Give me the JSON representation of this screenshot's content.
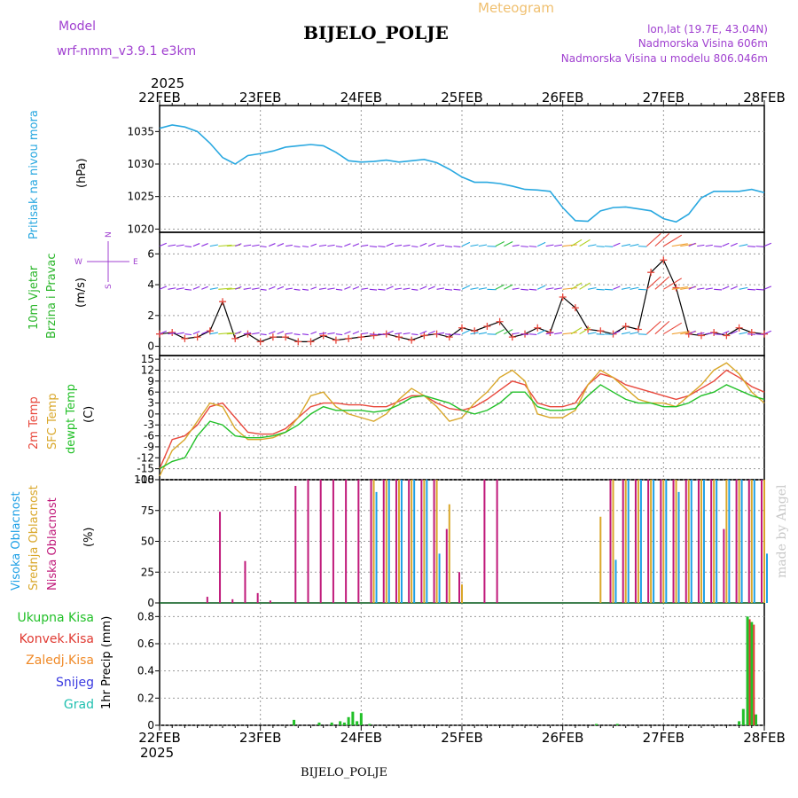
{
  "header": {
    "meteogram_title": "Meteogram",
    "model_label": "Model",
    "model_name": "wrf-nmm_v3.9.1 e3km",
    "station": "BIJELO_POLJE",
    "lonlat": "lon,lat (19.7E, 43.04N)",
    "altitude": "Nadmorska Visina 606m",
    "model_altitude": "Nadmorska Visina u modelu 806.046m",
    "year": "2025",
    "footer_station": "BIJELO_POLJE",
    "credit": "made by Angel"
  },
  "colors": {
    "pressure": "#29a8e0",
    "temp2m": "#e8483c",
    "sfc": "#d9a72a",
    "dew": "#22c028",
    "high_cloud": "#1ea0e6",
    "mid_cloud": "#d9a72a",
    "low_cloud": "#c0197a",
    "total_rain": "#22c028",
    "conv_rain": "#e03a32",
    "freezing": "#f08a28",
    "snow": "#3a3ae0",
    "hail": "#20c0b0",
    "wind_label": "#2ab62a",
    "axis_purple": "#a040d0"
  },
  "chart_data": [
    {
      "type": "line",
      "id": "pressure",
      "ylabel": "Pritisak na nivou mora",
      "unit": "(hPa)",
      "ylim": [
        1019.5,
        1039
      ],
      "yticks": [
        "1020",
        "1025",
        "1030",
        "1035"
      ],
      "x_hours": [
        0,
        3,
        6,
        9,
        12,
        15,
        18,
        21,
        24,
        27,
        30,
        33,
        36,
        39,
        42,
        45,
        48,
        51,
        54,
        57,
        60,
        63,
        66,
        69,
        72,
        75,
        78,
        81,
        84,
        87,
        90,
        93,
        96,
        99,
        102,
        105,
        108,
        111,
        114,
        117,
        120,
        123,
        126,
        129,
        132,
        135,
        138,
        141,
        144
      ],
      "values": [
        1035.5,
        1036,
        1035.7,
        1035,
        1033.2,
        1031,
        1030,
        1031.3,
        1031.6,
        1032,
        1032.6,
        1032.8,
        1033,
        1032.8,
        1031.8,
        1030.5,
        1030.3,
        1030.4,
        1030.6,
        1030.3,
        1030.5,
        1030.7,
        1030.2,
        1029.2,
        1028,
        1027.2,
        1027.2,
        1027,
        1026.6,
        1026.1,
        1026,
        1025.8,
        1023.3,
        1021.3,
        1021.2,
        1022.8,
        1023.3,
        1023.4,
        1023.1,
        1022.8,
        1021.6,
        1021.1,
        1022.3,
        1024.8,
        1025.8,
        1025.8,
        1025.8,
        1026.1,
        1025.6
      ]
    },
    {
      "type": "line",
      "id": "wind",
      "ylabel": [
        "10m Vjetar",
        "Brzina i Pravac"
      ],
      "unit": "(m/s)",
      "ylim": [
        -0.6,
        7.4
      ],
      "yticks": [
        "0",
        "2",
        "4",
        "6"
      ],
      "compass": [
        "W",
        "E",
        "N",
        "S"
      ],
      "x_hours": [
        0,
        3,
        6,
        9,
        12,
        15,
        18,
        21,
        24,
        27,
        30,
        33,
        36,
        39,
        42,
        45,
        48,
        51,
        54,
        57,
        60,
        63,
        66,
        69,
        72,
        75,
        78,
        81,
        84,
        87,
        90,
        93,
        96,
        99,
        102,
        105,
        108,
        111,
        114,
        117,
        120,
        123,
        126,
        129,
        132,
        135,
        138,
        141,
        144
      ],
      "values": [
        0.8,
        0.9,
        0.5,
        0.6,
        1.0,
        2.9,
        0.5,
        0.8,
        0.3,
        0.6,
        0.6,
        0.3,
        0.3,
        0.7,
        0.4,
        0.5,
        0.6,
        0.7,
        0.8,
        0.6,
        0.4,
        0.7,
        0.8,
        0.6,
        1.2,
        1.0,
        1.3,
        1.6,
        0.6,
        0.8,
        1.2,
        0.9,
        3.2,
        2.5,
        1.1,
        1.0,
        0.8,
        1.3,
        1.1,
        4.8,
        5.6,
        3.8,
        0.8,
        0.7,
        0.9,
        0.7,
        1.2,
        0.9,
        0.8
      ]
    },
    {
      "type": "line",
      "id": "temperature",
      "ylabel": [
        "2m Temp",
        "SFC Temp",
        "dewpt Temp"
      ],
      "unit": "(C)",
      "ylim": [
        -18,
        16
      ],
      "yticks": [
        "-18",
        "-15",
        "-12",
        "-9",
        "-6",
        "-3",
        "0",
        "3",
        "6",
        "9",
        "12",
        "15"
      ],
      "x_hours": [
        0,
        3,
        6,
        9,
        12,
        15,
        18,
        21,
        24,
        27,
        30,
        33,
        36,
        39,
        42,
        45,
        48,
        51,
        54,
        57,
        60,
        63,
        66,
        69,
        72,
        75,
        78,
        81,
        84,
        87,
        90,
        93,
        96,
        99,
        102,
        105,
        108,
        111,
        114,
        117,
        120,
        123,
        126,
        129,
        132,
        135,
        138,
        141,
        144
      ],
      "series": [
        {
          "name": "2m Temp",
          "values": [
            -15,
            -7,
            -6,
            -3,
            2,
            3,
            -1,
            -5,
            -5.5,
            -5.5,
            -4,
            -1,
            2,
            3,
            3,
            2.5,
            2.5,
            2,
            2,
            3.5,
            5,
            5,
            3,
            1.5,
            1,
            2,
            4,
            6.5,
            9,
            8,
            3,
            2,
            2,
            3,
            8,
            11,
            10,
            8,
            7,
            6,
            5,
            4,
            5,
            7,
            9,
            12,
            10,
            7.5,
            6
          ]
        },
        {
          "name": "SFC Temp",
          "values": [
            -17,
            -10,
            -7,
            -2,
            3,
            2,
            -4,
            -7,
            -7,
            -6.5,
            -5,
            -1,
            5,
            6,
            2,
            0,
            -1,
            -2,
            0,
            4,
            7,
            5,
            2,
            -2,
            -1,
            3,
            6,
            10,
            12,
            9,
            0,
            -1,
            -1,
            1,
            8,
            12,
            10,
            7,
            4,
            3,
            3,
            2,
            5,
            8,
            12,
            14,
            11,
            6,
            3
          ]
        },
        {
          "name": "dewpt Temp",
          "values": [
            -15,
            -13,
            -12,
            -6,
            -2,
            -3,
            -6,
            -6.5,
            -6.5,
            -6,
            -5,
            -3,
            0,
            2,
            1,
            1,
            1,
            0.5,
            1,
            2.5,
            4.5,
            5,
            4,
            3,
            1,
            0,
            1,
            3,
            6,
            6,
            2,
            1,
            1,
            1.5,
            5,
            8,
            6,
            4,
            3,
            3,
            2,
            2,
            3,
            5,
            6,
            8,
            6.5,
            5,
            4
          ]
        }
      ]
    },
    {
      "type": "bar",
      "id": "clouds",
      "ylabel": [
        "Visoka Oblacnost",
        "Srednja Oblacnost",
        "Niska Oblacnost"
      ],
      "unit": "(%)",
      "ylim": [
        0,
        100
      ],
      "yticks": [
        "0",
        "25",
        "50",
        "75",
        "100"
      ],
      "x_hours": [
        0,
        3,
        6,
        9,
        12,
        15,
        18,
        21,
        24,
        27,
        30,
        33,
        36,
        39,
        42,
        45,
        48,
        51,
        54,
        57,
        60,
        63,
        66,
        69,
        72,
        75,
        78,
        81,
        84,
        87,
        90,
        93,
        96,
        99,
        102,
        105,
        108,
        111,
        114,
        117,
        120,
        123,
        126,
        129,
        132,
        135,
        138,
        141,
        144
      ],
      "series": [
        {
          "name": "Niska Oblacnost",
          "values": [
            0,
            0,
            0,
            0,
            5,
            74,
            3,
            34,
            8,
            2,
            0,
            95,
            100,
            100,
            100,
            100,
            100,
            100,
            100,
            100,
            100,
            100,
            100,
            60,
            25,
            0,
            100,
            100,
            0,
            0,
            0,
            0,
            0,
            0,
            0,
            0,
            100,
            100,
            100,
            100,
            100,
            100,
            100,
            100,
            100,
            60,
            100,
            100,
            100
          ]
        },
        {
          "name": "Srednja Oblacnost",
          "values": [
            0,
            0,
            0,
            0,
            0,
            0,
            0,
            0,
            0,
            0,
            0,
            0,
            0,
            0,
            0,
            0,
            0,
            100,
            100,
            100,
            100,
            100,
            100,
            80,
            15,
            0,
            0,
            0,
            0,
            0,
            0,
            0,
            0,
            0,
            0,
            70,
            100,
            100,
            100,
            100,
            100,
            100,
            100,
            100,
            100,
            100,
            100,
            100,
            100
          ]
        },
        {
          "name": "Visoka Oblacnost",
          "values": [
            0,
            0,
            0,
            0,
            0,
            0,
            0,
            0,
            0,
            0,
            0,
            0,
            0,
            0,
            0,
            0,
            0,
            90,
            100,
            100,
            100,
            100,
            40,
            0,
            0,
            0,
            0,
            0,
            0,
            0,
            0,
            0,
            0,
            0,
            0,
            0,
            35,
            100,
            100,
            100,
            100,
            90,
            100,
            100,
            100,
            100,
            100,
            100,
            40
          ]
        }
      ]
    },
    {
      "type": "bar",
      "id": "precip",
      "ylabel": "1hr Precip (mm)",
      "ylim": [
        0,
        0.9
      ],
      "yticks": [
        "0",
        "0.2",
        "0.4",
        "0.6",
        "0.8"
      ],
      "legend": [
        "Ukupna Kisa",
        "Konvek.Kisa",
        "Zaledj.Kisa",
        "Snijeg",
        "Grad"
      ],
      "total_rain": {
        "x_hours": [
          32,
          38,
          41,
          43,
          44,
          45,
          46,
          47,
          48,
          50,
          104,
          109,
          138,
          139,
          140,
          141,
          142
        ],
        "values": [
          0.04,
          0.02,
          0.02,
          0.03,
          0.02,
          0.06,
          0.1,
          0.03,
          0.09,
          0.01,
          0.01,
          0.01,
          0.03,
          0.12,
          0.8,
          0.76,
          0.08
        ]
      },
      "convective_rain": {
        "x_hours": [
          140,
          141
        ],
        "values": [
          0.78,
          0.74
        ]
      }
    }
  ],
  "x_axis": {
    "labels": [
      "22FEB",
      "23FEB",
      "24FEB",
      "25FEB",
      "26FEB",
      "27FEB",
      "28FEB"
    ],
    "hours_total": 144
  }
}
